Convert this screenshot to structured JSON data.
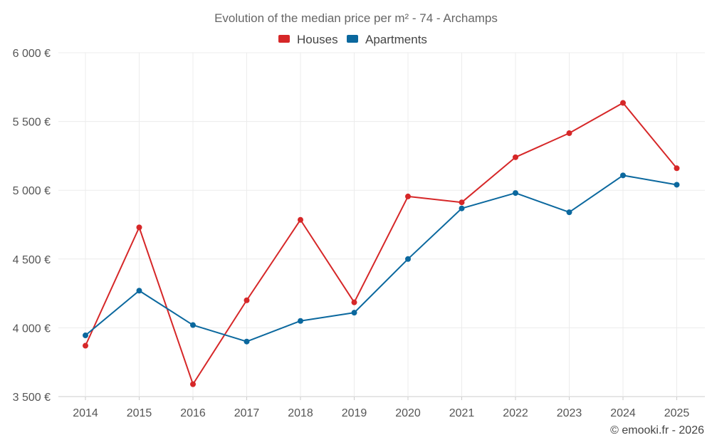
{
  "chart_data": {
    "type": "line",
    "title": "Evolution of the median price per m² - 74 - Archamps",
    "xlabel": "",
    "ylabel": "",
    "x": [
      2014,
      2015,
      2016,
      2017,
      2018,
      2019,
      2020,
      2021,
      2022,
      2023,
      2024,
      2025
    ],
    "x_tick_labels": [
      "2014",
      "2015",
      "2016",
      "2017",
      "2018",
      "2019",
      "2020",
      "2021",
      "2022",
      "2023",
      "2024",
      "2025"
    ],
    "ylim": [
      3500,
      6000
    ],
    "y_ticks": [
      3500,
      4000,
      4500,
      5000,
      5500,
      6000
    ],
    "y_tick_labels": [
      "3 500 €",
      "4 000 €",
      "4 500 €",
      "5 000 €",
      "5 500 €",
      "6 000 €"
    ],
    "grid": true,
    "legend_position": "top-center",
    "series": [
      {
        "name": "Houses",
        "color": "#d62728",
        "values": [
          3870,
          4730,
          3590,
          4200,
          4785,
          4185,
          4955,
          4912,
          5240,
          5415,
          5635,
          5160
        ]
      },
      {
        "name": "Apartments",
        "color": "#0b689e",
        "values": [
          3945,
          4270,
          4020,
          3900,
          4050,
          4110,
          4500,
          4868,
          4980,
          4840,
          5108,
          5040
        ]
      }
    ]
  },
  "credit": "© emooki.fr - 2026"
}
